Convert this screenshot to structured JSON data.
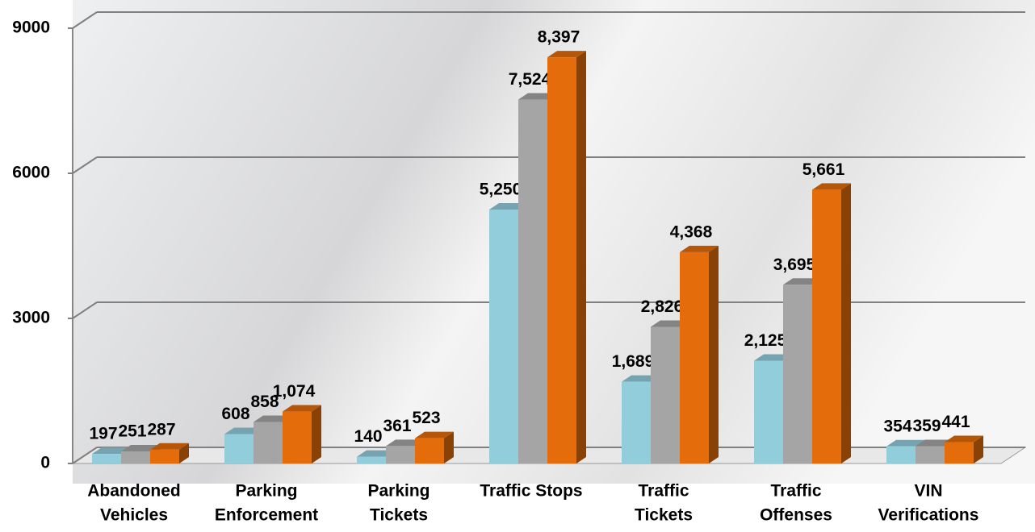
{
  "chart_data": {
    "type": "bar3d",
    "categories": [
      [
        "Abandoned",
        "Vehicles"
      ],
      [
        "Parking",
        "Enforcement"
      ],
      [
        "Parking",
        "Tickets"
      ],
      [
        "Traffic Stops"
      ],
      [
        "Traffic",
        "Tickets"
      ],
      [
        "Traffic",
        "Offenses"
      ],
      [
        "VIN",
        "Verifications"
      ]
    ],
    "series": [
      {
        "color": "#92cddc",
        "values": [
          197,
          608,
          140,
          5250,
          1689,
          2125,
          354
        ],
        "value_labels": [
          "197",
          "608",
          "140",
          "5,250",
          "1,689",
          "2,125",
          "354"
        ]
      },
      {
        "color": "#a5a5a5",
        "values": [
          251,
          858,
          361,
          7524,
          2826,
          3695,
          359
        ],
        "value_labels": [
          "251",
          "858",
          "361",
          "7,524",
          "2,826",
          "3,695",
          "359"
        ]
      },
      {
        "color": "#e46c0a",
        "values": [
          287,
          1074,
          523,
          8397,
          4368,
          5661,
          441
        ],
        "value_labels": [
          "287",
          "1,074",
          "523",
          "8,397",
          "4,368",
          "5,661",
          "441"
        ]
      }
    ],
    "ylim": [
      0,
      9000
    ],
    "yticks": [
      0,
      3000,
      6000,
      9000
    ],
    "grid": true
  }
}
